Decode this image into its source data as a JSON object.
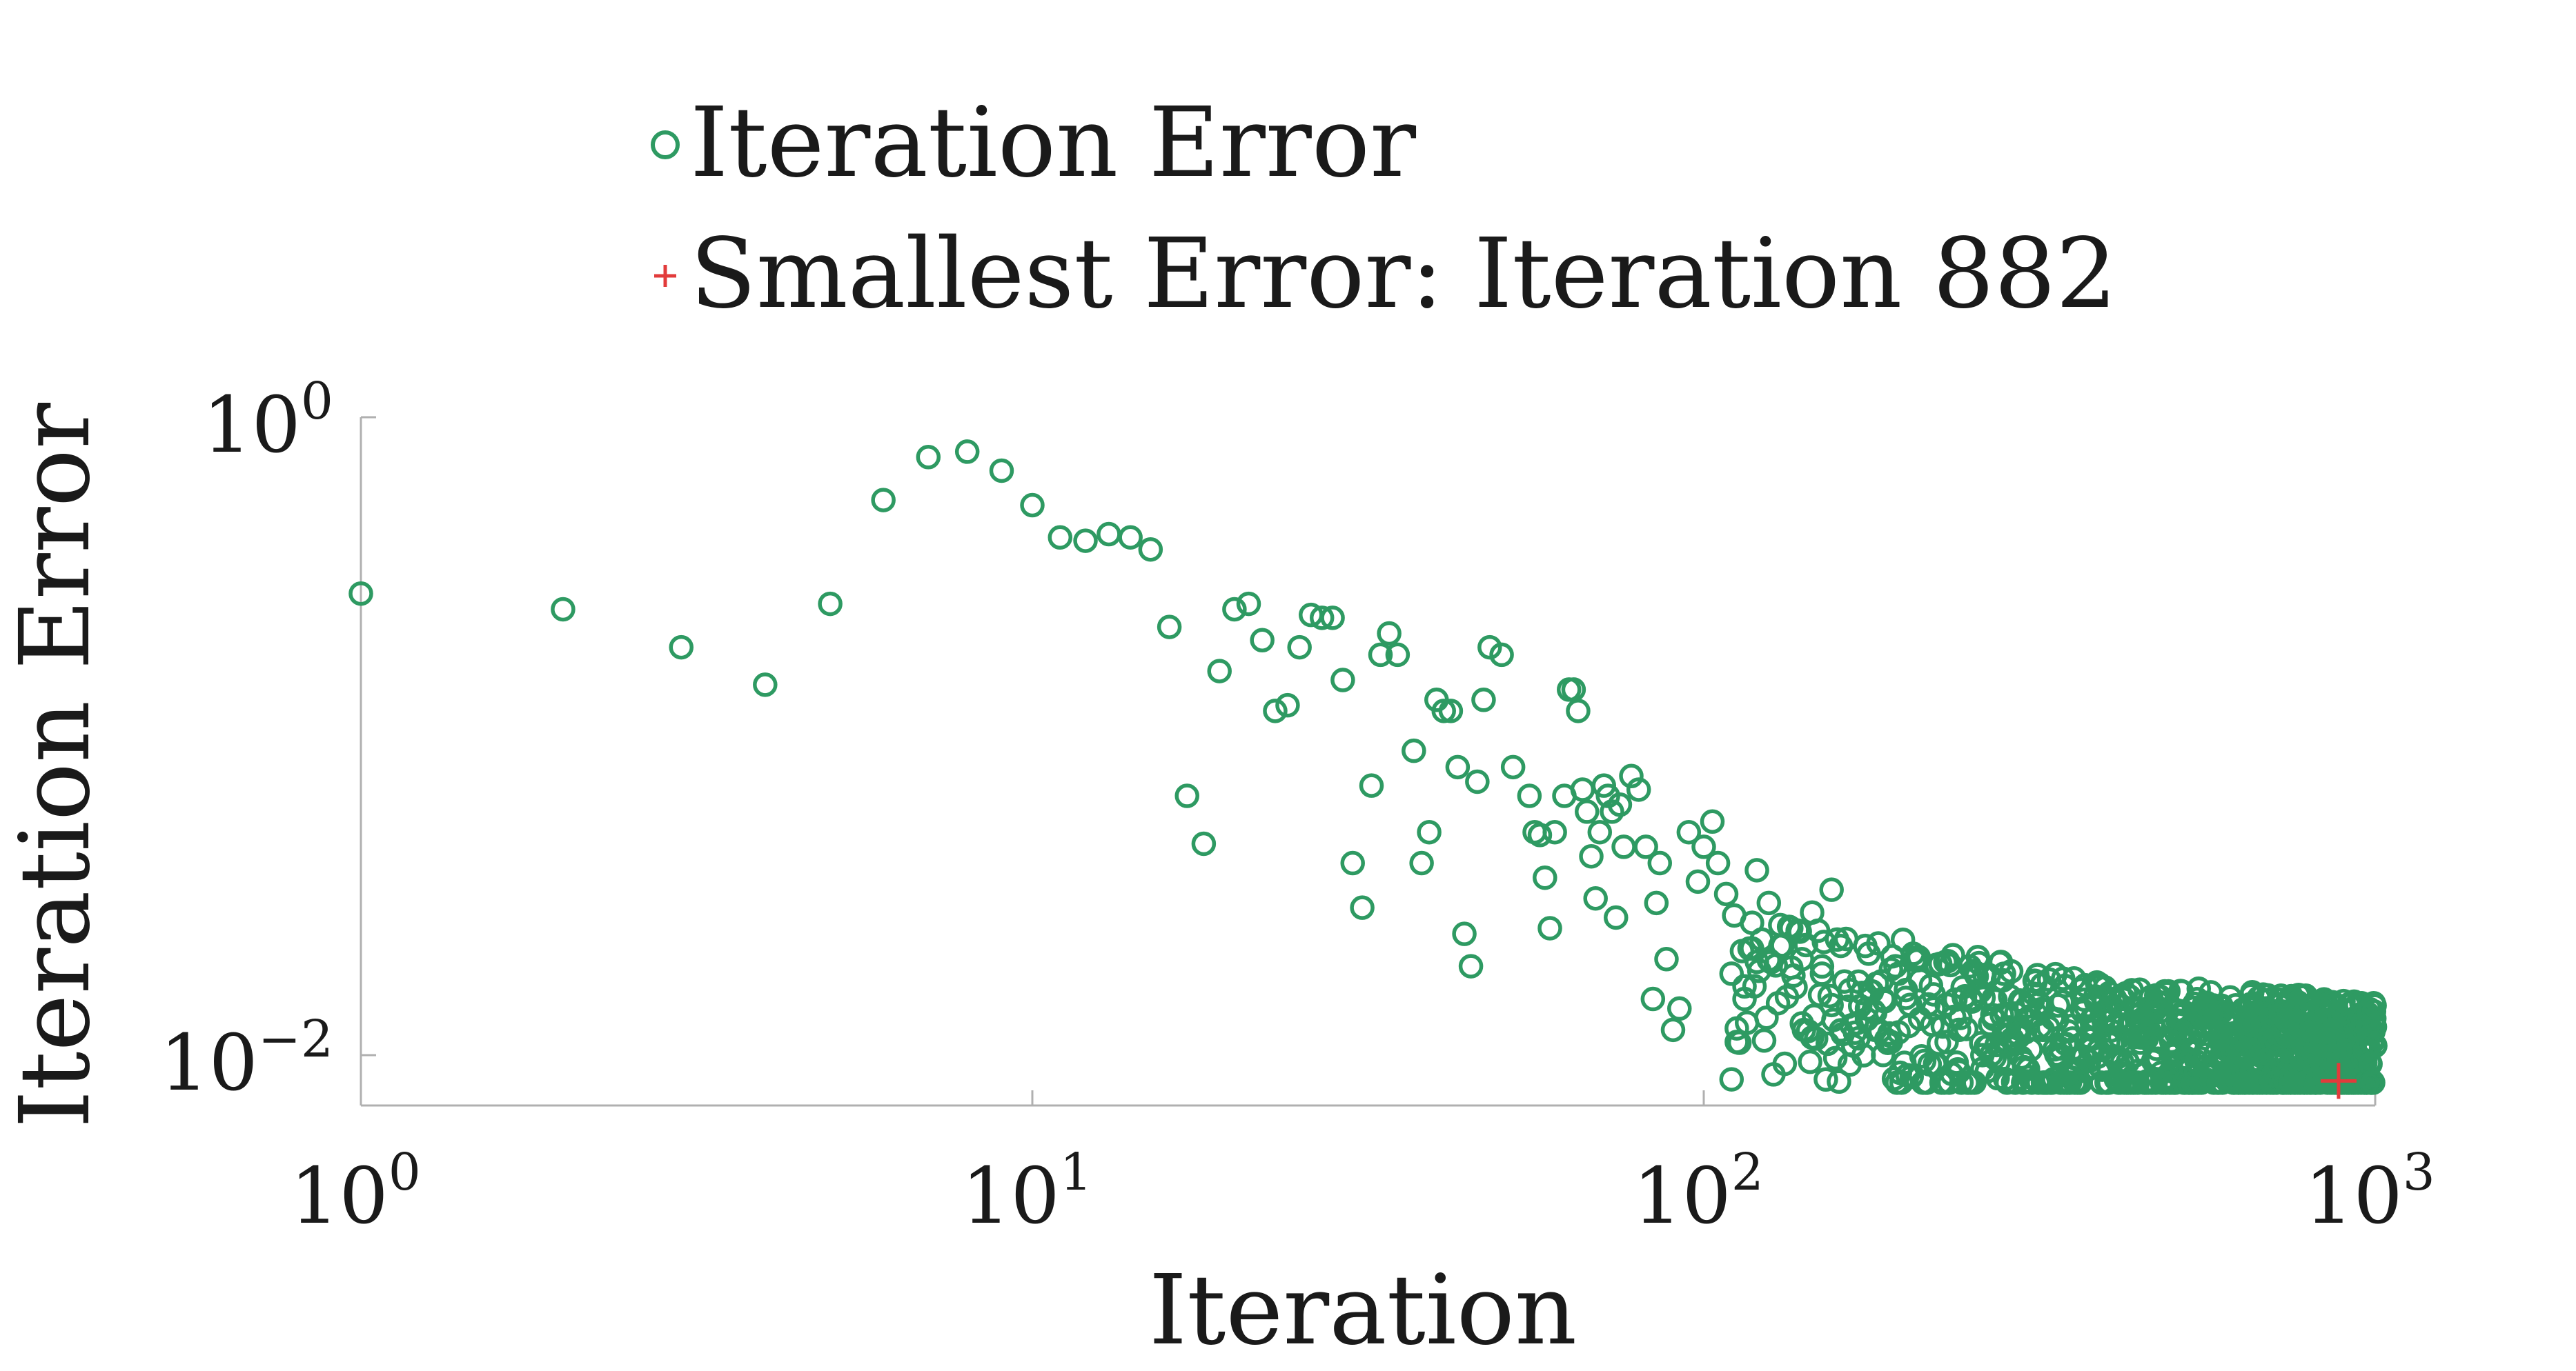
{
  "chart_data": {
    "type": "scatter",
    "title": "",
    "xlabel": "Iteration",
    "ylabel": "Iteration Error",
    "xscale": "log",
    "yscale": "log",
    "xlim": [
      1,
      1000
    ],
    "ylim": [
      0.007,
      1.0
    ],
    "xticks": [
      {
        "base": "10",
        "exp": "0",
        "value": 1
      },
      {
        "base": "10",
        "exp": "1",
        "value": 10
      },
      {
        "base": "10",
        "exp": "2",
        "value": 100
      },
      {
        "base": "10",
        "exp": "3",
        "value": 1000
      }
    ],
    "yticks": [
      {
        "base": "10",
        "exp": "0",
        "value": 1
      },
      {
        "base": "10",
        "exp": "−2",
        "value": 0.01
      }
    ],
    "grid": false,
    "legend_position": "top-center",
    "series": [
      {
        "name": "Iteration Error",
        "marker": "circle-open",
        "color": "#2e9a62",
        "points": [
          [
            1,
            0.28
          ],
          [
            2,
            0.25
          ],
          [
            3,
            0.19
          ],
          [
            4,
            0.145
          ],
          [
            5,
            0.26
          ],
          [
            6,
            0.55
          ],
          [
            7,
            0.75
          ],
          [
            8,
            0.78
          ],
          [
            9,
            0.68
          ],
          [
            10,
            0.53
          ],
          [
            11,
            0.42
          ],
          [
            12,
            0.41
          ],
          [
            13,
            0.43
          ],
          [
            14,
            0.42
          ],
          [
            15,
            0.385
          ],
          [
            16,
            0.22
          ],
          [
            17,
            0.065
          ],
          [
            18,
            0.046
          ],
          [
            19,
            0.16
          ],
          [
            20,
            0.25
          ],
          [
            21,
            0.26
          ],
          [
            22,
            0.2
          ],
          [
            23,
            0.12
          ],
          [
            24,
            0.125
          ],
          [
            25,
            0.19
          ],
          [
            26,
            0.24
          ],
          [
            27,
            0.235
          ],
          [
            28,
            0.235
          ],
          [
            29,
            0.15
          ],
          [
            30,
            0.04
          ],
          [
            31,
            0.029
          ],
          [
            32,
            0.07
          ],
          [
            33,
            0.18
          ],
          [
            34,
            0.21
          ],
          [
            35,
            0.18
          ],
          [
            37,
            0.09
          ],
          [
            38,
            0.04
          ],
          [
            39,
            0.05
          ],
          [
            40,
            0.13
          ],
          [
            41,
            0.12
          ],
          [
            42,
            0.12
          ],
          [
            43,
            0.08
          ],
          [
            44,
            0.024
          ],
          [
            45,
            0.019
          ],
          [
            46,
            0.072
          ],
          [
            47,
            0.13
          ],
          [
            48,
            0.19
          ],
          [
            50,
            0.18
          ],
          [
            52,
            0.08
          ],
          [
            55,
            0.065
          ],
          [
            56,
            0.05
          ],
          [
            57,
            0.049
          ],
          [
            58,
            0.036
          ],
          [
            59,
            0.025
          ],
          [
            60,
            0.05
          ],
          [
            62,
            0.065
          ],
          [
            63,
            0.14
          ],
          [
            64,
            0.14
          ],
          [
            65,
            0.12
          ],
          [
            66,
            0.068
          ],
          [
            67,
            0.058
          ],
          [
            68,
            0.042
          ],
          [
            69,
            0.031
          ],
          [
            70,
            0.05
          ],
          [
            71,
            0.07
          ],
          [
            72,
            0.065
          ],
          [
            73,
            0.058
          ],
          [
            74,
            0.027
          ],
          [
            75,
            0.061
          ],
          [
            76,
            0.045
          ],
          [
            78,
            0.075
          ],
          [
            80,
            0.068
          ],
          [
            82,
            0.045
          ],
          [
            84,
            0.015
          ],
          [
            85,
            0.03
          ],
          [
            86,
            0.04
          ],
          [
            88,
            0.02
          ],
          [
            90,
            0.012
          ],
          [
            92,
            0.014
          ],
          [
            95,
            0.05
          ],
          [
            98,
            0.035
          ],
          [
            100,
            0.045
          ],
          [
            103,
            0.054
          ],
          [
            105,
            0.04
          ],
          [
            108,
            0.032
          ],
          [
            110,
            0.018
          ],
          [
            112,
            0.011
          ],
          [
            115,
            0.015
          ],
          [
            118,
            0.026
          ],
          [
            120,
            0.038
          ],
          [
            125,
            0.03
          ],
          [
            130,
            0.022
          ],
          [
            135,
            0.025
          ],
          [
            140,
            0.02
          ],
          [
            145,
            0.028
          ],
          [
            150,
            0.018
          ],
          [
            155,
            0.033
          ],
          [
            160,
            0.022
          ],
          [
            165,
            0.016
          ],
          [
            170,
            0.017
          ],
          [
            175,
            0.014
          ],
          [
            180,
            0.012
          ],
          [
            185,
            0.015
          ],
          [
            190,
            0.011
          ],
          [
            195,
            0.018
          ],
          [
            200,
            0.016
          ],
          [
            210,
            0.013
          ],
          [
            220,
            0.014
          ],
          [
            230,
            0.011
          ],
          [
            240,
            0.012
          ],
          [
            250,
            0.015
          ],
          [
            260,
            0.01
          ],
          [
            270,
            0.013
          ],
          [
            280,
            0.012
          ],
          [
            290,
            0.011
          ],
          [
            300,
            0.0095
          ],
          [
            320,
            0.012
          ],
          [
            340,
            0.0105
          ],
          [
            360,
            0.009
          ],
          [
            380,
            0.013
          ],
          [
            400,
            0.011
          ],
          [
            420,
            0.0095
          ],
          [
            440,
            0.01
          ],
          [
            460,
            0.012
          ],
          [
            480,
            0.0088
          ],
          [
            500,
            0.01
          ],
          [
            530,
            0.011
          ],
          [
            560,
            0.0092
          ],
          [
            590,
            0.01
          ],
          [
            620,
            0.0098
          ],
          [
            650,
            0.009
          ],
          [
            680,
            0.0105
          ],
          [
            710,
            0.0095
          ],
          [
            740,
            0.012
          ],
          [
            770,
            0.0098
          ],
          [
            800,
            0.0102
          ],
          [
            830,
            0.0115
          ],
          [
            860,
            0.0096
          ],
          [
            890,
            0.0108
          ],
          [
            920,
            0.0112
          ],
          [
            950,
            0.0098
          ],
          [
            980,
            0.0104
          ],
          [
            1000,
            0.0107
          ]
        ]
      },
      {
        "name": "Smallest Error: Iteration 882",
        "marker": "plus",
        "color": "#e23b3b",
        "points": [
          [
            882,
            0.0083
          ]
        ]
      }
    ],
    "cloud": {
      "start": 110,
      "end": 1000,
      "trend_start": 0.016,
      "trend_mid": 0.0105,
      "trend_end": 0.0103,
      "seed": 7
    }
  }
}
